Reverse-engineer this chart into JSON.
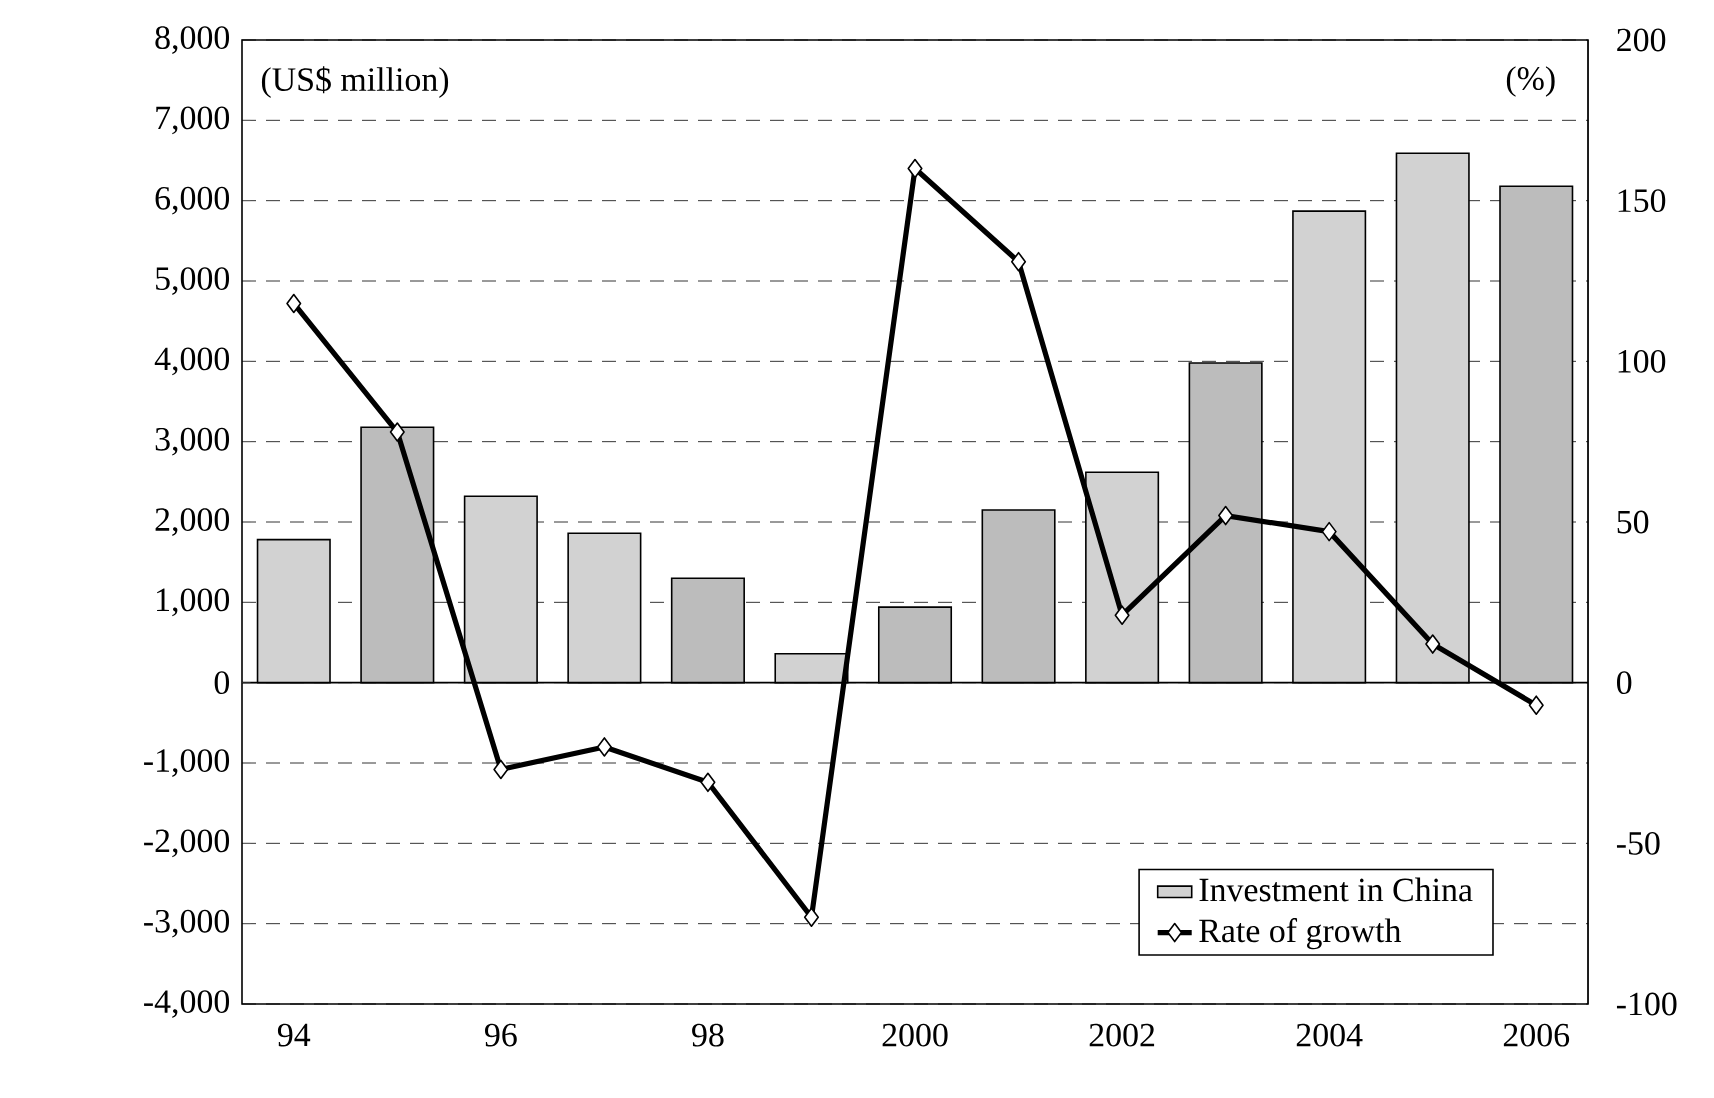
{
  "chart_data": {
    "type": "bar",
    "categories": [
      "94",
      null,
      "96",
      null,
      "98",
      null,
      "2000",
      null,
      "2002",
      null,
      "2004",
      null,
      "2006"
    ],
    "series": [
      {
        "name": "Investment in China",
        "colors": [
          "#d2d2d2",
          "#bcbcbc",
          "#d2d2d2",
          "#d2d2d2",
          "#bcbcbc",
          "#d2d2d2",
          "#bcbcbc",
          "#bcbcbc",
          "#d2d2d2",
          "#bcbcbc",
          "#d2d2d2",
          "#d2d2d2",
          "#bcbcbc"
        ],
        "values": [
          1780,
          3180,
          2320,
          1860,
          1300,
          360,
          940,
          2150,
          2620,
          3980,
          5870,
          6590,
          6180
        ]
      },
      {
        "name": "Rate of growth",
        "type": "line",
        "axis": "y2",
        "color": "#000000",
        "values": [
          118,
          78,
          -27,
          -20,
          -31,
          -73,
          160,
          131,
          21,
          52,
          47,
          12,
          -7
        ]
      }
    ],
    "ylabel": "(US$ million)",
    "y2label": "(%)",
    "ylim": [
      -4000,
      8000
    ],
    "yticks": [
      {
        "value": -4000,
        "label": "-4,000"
      },
      {
        "value": -3000,
        "label": "-3,000"
      },
      {
        "value": -2000,
        "label": "-2,000"
      },
      {
        "value": -1000,
        "label": "-1,000"
      },
      0,
      {
        "value": 1000,
        "label": "1,000"
      },
      {
        "value": 2000,
        "label": "2,000"
      },
      {
        "value": 3000,
        "label": "3,000"
      },
      {
        "value": 4000,
        "label": "4,000"
      },
      {
        "value": 5000,
        "label": "5,000"
      },
      {
        "value": 6000,
        "label": "6,000"
      },
      {
        "value": 7000,
        "label": "7,000"
      },
      {
        "value": 8000,
        "label": "8,000"
      }
    ],
    "y2lim": [
      -100,
      200
    ],
    "y2ticks": [
      -100,
      -50,
      0,
      50,
      100,
      150,
      200
    ],
    "grid": "y",
    "legend": "bottom right",
    "marker": "diamond",
    "line_style": "solid"
  }
}
